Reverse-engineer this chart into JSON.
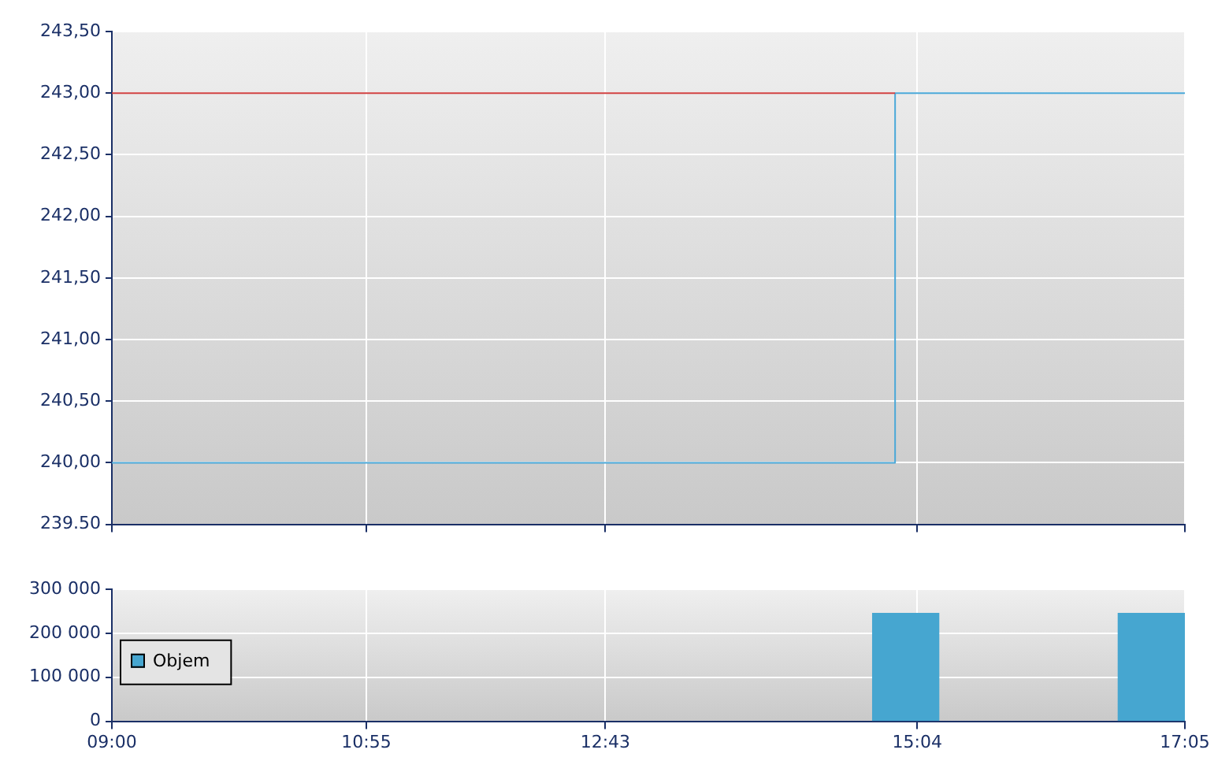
{
  "chart_data": [
    {
      "type": "step",
      "xlim": [
        9,
        17.083
      ],
      "xticks": [
        {
          "value": 9,
          "label": null
        },
        {
          "value": 10.917,
          "label": null
        },
        {
          "value": 12.717,
          "label": null
        },
        {
          "value": 15.067,
          "label": null
        },
        {
          "value": 17.083,
          "label": null
        }
      ],
      "ylim": [
        239.5,
        243.5
      ],
      "yticks": [
        {
          "value": 239.5,
          "label": "239.50"
        },
        {
          "value": 240,
          "label": "240,00"
        },
        {
          "value": 240.5,
          "label": "240,50"
        },
        {
          "value": 241,
          "label": "241,00"
        },
        {
          "value": 241.5,
          "label": "241,50"
        },
        {
          "value": 242,
          "label": "242,00"
        },
        {
          "value": 242.5,
          "label": "242,50"
        },
        {
          "value": 243,
          "label": "243,00"
        },
        {
          "value": 243.5,
          "label": "243,50"
        }
      ],
      "tick_labels": "y",
      "grid": true,
      "series": [
        {
          "type": "line",
          "color": "#d04040",
          "x": [
            9,
            14.9
          ],
          "values": [
            243,
            243
          ]
        },
        {
          "color": "#4aa8d8",
          "x": [
            9,
            14.9,
            17.083
          ],
          "values": [
            240,
            243,
            243
          ]
        }
      ]
    },
    {
      "type": "bar",
      "xlim": [
        9,
        17.083
      ],
      "xticks": [
        {
          "value": 9,
          "label": "09:00"
        },
        {
          "value": 10.917,
          "label": "10:55"
        },
        {
          "value": 12.717,
          "label": "12:43"
        },
        {
          "value": 15.067,
          "label": "15:04"
        },
        {
          "value": 17.083,
          "label": "17:05"
        }
      ],
      "ylim": [
        0,
        300000
      ],
      "yticks": [
        {
          "value": 0,
          "label": "0"
        },
        {
          "value": 100000,
          "label": "100 000"
        },
        {
          "value": 200000,
          "label": "200 000"
        },
        {
          "value": 300000,
          "label": "300 000"
        }
      ],
      "grid": true,
      "legend": "left",
      "series": [
        {
          "name": "Objem",
          "color": "#46a6d0",
          "x": [
            14.98,
            16.83
          ],
          "values": [
            245000,
            245000
          ]
        }
      ]
    }
  ]
}
